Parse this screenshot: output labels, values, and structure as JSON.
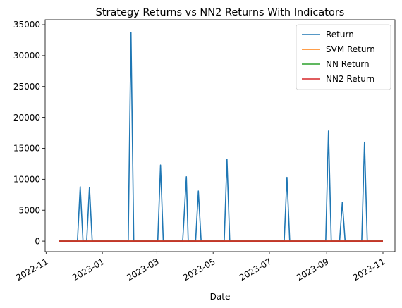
{
  "chart_data": {
    "type": "line",
    "title": "Strategy Returns vs NN2 Returns With Indicators",
    "xlabel": "Date",
    "ylabel": "",
    "x_range": [
      "2022-10-31",
      "2023-11-14"
    ],
    "ylim": [
      -1700,
      35800
    ],
    "grid": false,
    "legend_position": "top-right",
    "x_ticks": [
      "2022-11",
      "2023-01",
      "2023-03",
      "2023-05",
      "2023-07",
      "2023-09",
      "2023-11"
    ],
    "y_ticks": [
      0,
      5000,
      10000,
      15000,
      20000,
      25000,
      30000,
      35000
    ],
    "series": [
      {
        "name": "Return",
        "color": "#1f77b4",
        "points": [
          [
            "2022-11-15",
            0
          ],
          [
            "2022-12-05",
            0
          ],
          [
            "2022-12-08",
            8800
          ],
          [
            "2022-12-11",
            0
          ],
          [
            "2022-12-15",
            0
          ],
          [
            "2022-12-18",
            8700
          ],
          [
            "2022-12-21",
            0
          ],
          [
            "2023-01-29",
            0
          ],
          [
            "2023-02-01",
            33700
          ],
          [
            "2023-02-04",
            0
          ],
          [
            "2023-03-02",
            0
          ],
          [
            "2023-03-05",
            12300
          ],
          [
            "2023-03-08",
            0
          ],
          [
            "2023-03-29",
            0
          ],
          [
            "2023-04-02",
            10400
          ],
          [
            "2023-04-04",
            0
          ],
          [
            "2023-04-12",
            0
          ],
          [
            "2023-04-15",
            8100
          ],
          [
            "2023-04-18",
            0
          ],
          [
            "2023-05-13",
            0
          ],
          [
            "2023-05-16",
            13200
          ],
          [
            "2023-05-19",
            0
          ],
          [
            "2023-07-17",
            0
          ],
          [
            "2023-07-20",
            10300
          ],
          [
            "2023-07-23",
            0
          ],
          [
            "2023-08-31",
            0
          ],
          [
            "2023-09-03",
            17800
          ],
          [
            "2023-09-06",
            0
          ],
          [
            "2023-09-15",
            0
          ],
          [
            "2023-09-18",
            6300
          ],
          [
            "2023-09-21",
            0
          ],
          [
            "2023-10-09",
            0
          ],
          [
            "2023-10-12",
            16000
          ],
          [
            "2023-10-15",
            0
          ],
          [
            "2023-11-01",
            0
          ]
        ]
      },
      {
        "name": "SVM Return",
        "color": "#ff7f0e",
        "points": [
          [
            "2022-11-15",
            0
          ],
          [
            "2023-11-01",
            0
          ]
        ]
      },
      {
        "name": "NN Return",
        "color": "#2ca02c",
        "points": [
          [
            "2022-11-15",
            0
          ],
          [
            "2023-11-01",
            0
          ]
        ]
      },
      {
        "name": "NN2 Return",
        "color": "#d62728",
        "points": [
          [
            "2022-11-15",
            0
          ],
          [
            "2023-11-01",
            0
          ]
        ]
      }
    ]
  }
}
